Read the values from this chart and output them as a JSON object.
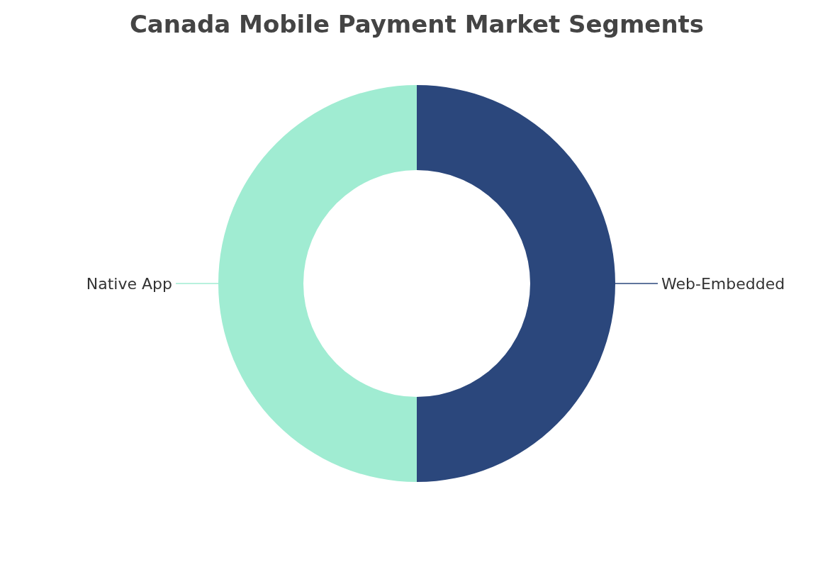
{
  "chart_data": {
    "type": "donut",
    "title": "Canada Mobile Payment Market Segments",
    "categories": [
      "Web-Embedded",
      "Native App"
    ],
    "values": [
      50,
      50
    ],
    "colors": [
      "#2b477c",
      "#a0ecd2"
    ]
  }
}
